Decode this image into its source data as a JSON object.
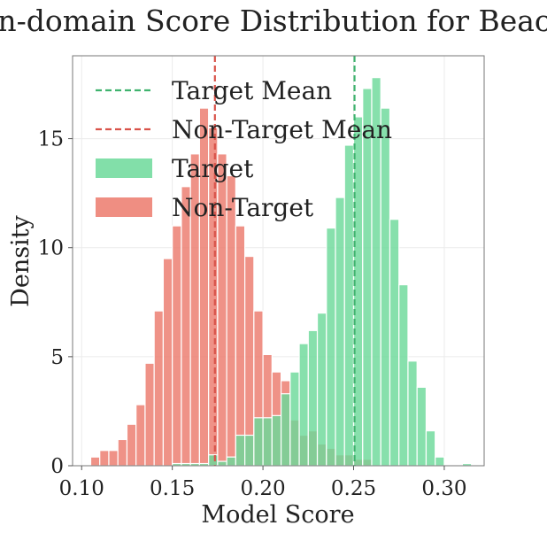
{
  "chart_data": {
    "type": "histogram",
    "title": "In-domain Score Distribution for Beach",
    "xlabel": "Model Score",
    "ylabel": "Density",
    "xlim": [
      0.095,
      0.322
    ],
    "ylim": [
      0,
      18.8
    ],
    "x_ticks": [
      0.1,
      0.15,
      0.2,
      0.25,
      0.3
    ],
    "x_tick_labels": [
      "0.10",
      "0.15",
      "0.20",
      "0.25",
      "0.30"
    ],
    "y_ticks": [
      0,
      5,
      10,
      15
    ],
    "y_tick_labels": [
      "0",
      "5",
      "10",
      "15"
    ],
    "grid": true,
    "legend_position": "top-left",
    "legend": [
      "Target Mean",
      "Non-Target Mean",
      "Target",
      "Non-Target"
    ],
    "bin_width": 0.005,
    "series": [
      {
        "name": "Non-Target",
        "color": "#ec7a6c",
        "bins": [
          {
            "x0": 0.105,
            "y": 0.4
          },
          {
            "x0": 0.11,
            "y": 0.7
          },
          {
            "x0": 0.115,
            "y": 0.7
          },
          {
            "x0": 0.12,
            "y": 1.2
          },
          {
            "x0": 0.125,
            "y": 1.9
          },
          {
            "x0": 0.13,
            "y": 2.8
          },
          {
            "x0": 0.135,
            "y": 4.7
          },
          {
            "x0": 0.14,
            "y": 7.1
          },
          {
            "x0": 0.145,
            "y": 9.5
          },
          {
            "x0": 0.15,
            "y": 11.0
          },
          {
            "x0": 0.155,
            "y": 12.8
          },
          {
            "x0": 0.16,
            "y": 14.3
          },
          {
            "x0": 0.165,
            "y": 16.4
          },
          {
            "x0": 0.17,
            "y": 15.5
          },
          {
            "x0": 0.175,
            "y": 14.3
          },
          {
            "x0": 0.18,
            "y": 13.3
          },
          {
            "x0": 0.185,
            "y": 11.0
          },
          {
            "x0": 0.19,
            "y": 9.6
          },
          {
            "x0": 0.195,
            "y": 7.1
          },
          {
            "x0": 0.2,
            "y": 5.1
          },
          {
            "x0": 0.205,
            "y": 4.3
          },
          {
            "x0": 0.21,
            "y": 3.9
          },
          {
            "x0": 0.215,
            "y": 2.1
          },
          {
            "x0": 0.22,
            "y": 1.4
          },
          {
            "x0": 0.225,
            "y": 1.6
          },
          {
            "x0": 0.23,
            "y": 1.0
          },
          {
            "x0": 0.235,
            "y": 0.8
          },
          {
            "x0": 0.24,
            "y": 0.5
          },
          {
            "x0": 0.245,
            "y": 0.5
          },
          {
            "x0": 0.25,
            "y": 0.3
          },
          {
            "x0": 0.255,
            "y": 0.3
          }
        ]
      },
      {
        "name": "Target",
        "color": "#6cd99a",
        "bins": [
          {
            "x0": 0.15,
            "y": 0.1
          },
          {
            "x0": 0.155,
            "y": 0.1
          },
          {
            "x0": 0.16,
            "y": 0.1
          },
          {
            "x0": 0.165,
            "y": 0.1
          },
          {
            "x0": 0.17,
            "y": 0.5
          },
          {
            "x0": 0.175,
            "y": 0.2
          },
          {
            "x0": 0.18,
            "y": 0.4
          },
          {
            "x0": 0.185,
            "y": 1.4
          },
          {
            "x0": 0.19,
            "y": 1.4
          },
          {
            "x0": 0.195,
            "y": 2.2
          },
          {
            "x0": 0.2,
            "y": 2.2
          },
          {
            "x0": 0.205,
            "y": 2.3
          },
          {
            "x0": 0.21,
            "y": 3.3
          },
          {
            "x0": 0.215,
            "y": 4.3
          },
          {
            "x0": 0.22,
            "y": 5.6
          },
          {
            "x0": 0.225,
            "y": 6.2
          },
          {
            "x0": 0.23,
            "y": 7.0
          },
          {
            "x0": 0.235,
            "y": 10.9
          },
          {
            "x0": 0.24,
            "y": 12.3
          },
          {
            "x0": 0.245,
            "y": 14.7
          },
          {
            "x0": 0.25,
            "y": 16.0
          },
          {
            "x0": 0.255,
            "y": 17.3
          },
          {
            "x0": 0.26,
            "y": 17.8
          },
          {
            "x0": 0.265,
            "y": 16.4
          },
          {
            "x0": 0.27,
            "y": 11.3
          },
          {
            "x0": 0.275,
            "y": 8.3
          },
          {
            "x0": 0.28,
            "y": 4.8
          },
          {
            "x0": 0.285,
            "y": 3.6
          },
          {
            "x0": 0.29,
            "y": 1.6
          },
          {
            "x0": 0.295,
            "y": 0.4
          },
          {
            "x0": 0.31,
            "y": 0.1
          }
        ]
      }
    ],
    "mean_lines": [
      {
        "name": "Target Mean",
        "x": 0.2505,
        "color": "#3fb36e"
      },
      {
        "name": "Non-Target Mean",
        "x": 0.1735,
        "color": "#d9534a"
      }
    ],
    "overlap_color": "#a98c6a"
  }
}
